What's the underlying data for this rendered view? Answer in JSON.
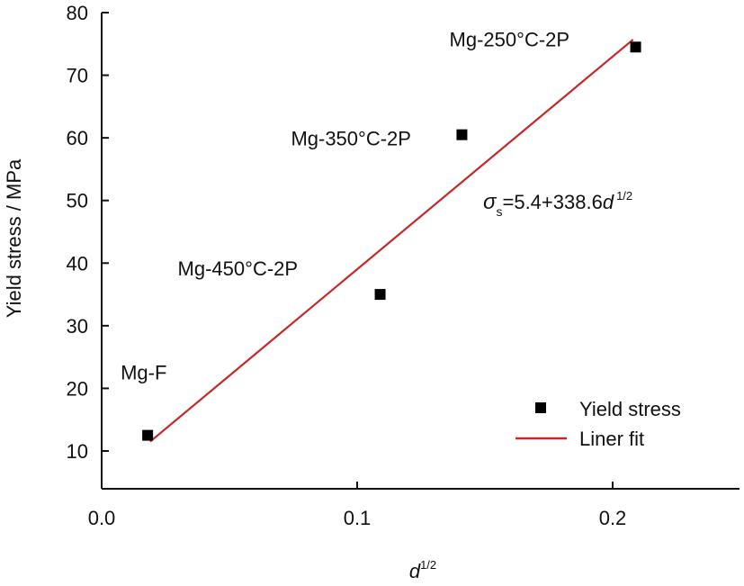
{
  "chart_data": {
    "type": "scatter",
    "title": "",
    "xlabel": "d",
    "xlabel_sup": "1/2",
    "ylabel": "Yield stress / MPa",
    "xlim": [
      0.0,
      0.25
    ],
    "ylim": [
      5,
      80
    ],
    "xticks": [
      0.0,
      0.1,
      0.2
    ],
    "xtick_labels": [
      "0.0",
      "0.1",
      "0.2"
    ],
    "yticks": [
      10,
      20,
      30,
      40,
      50,
      60,
      70,
      80
    ],
    "ytick_labels": [
      "10",
      "20",
      "30",
      "40",
      "50",
      "60",
      "70",
      "80"
    ],
    "grid": false,
    "legend_position": "bottom-right",
    "series": [
      {
        "name": "Yield stress",
        "kind": "scatter",
        "marker": "square",
        "color": "#000000",
        "points": [
          {
            "x": 0.018,
            "y": 12.5,
            "label": "Mg-F"
          },
          {
            "x": 0.109,
            "y": 35.0,
            "label": "Mg-450°C-2P"
          },
          {
            "x": 0.141,
            "y": 60.5,
            "label": "Mg-350°C-2P"
          },
          {
            "x": 0.209,
            "y": 74.5,
            "label": "Mg-250°C-2P"
          }
        ]
      },
      {
        "name": "Liner fit",
        "kind": "line",
        "color": "#c62828",
        "x": [
          0.019,
          0.208
        ],
        "y": [
          11.5,
          75.7
        ]
      }
    ],
    "annotations": {
      "equation_sigma": "σ",
      "equation_sub": "s",
      "equation_body": "=5.4+338.6",
      "equation_d": "d",
      "equation_sup": "1/2"
    }
  }
}
